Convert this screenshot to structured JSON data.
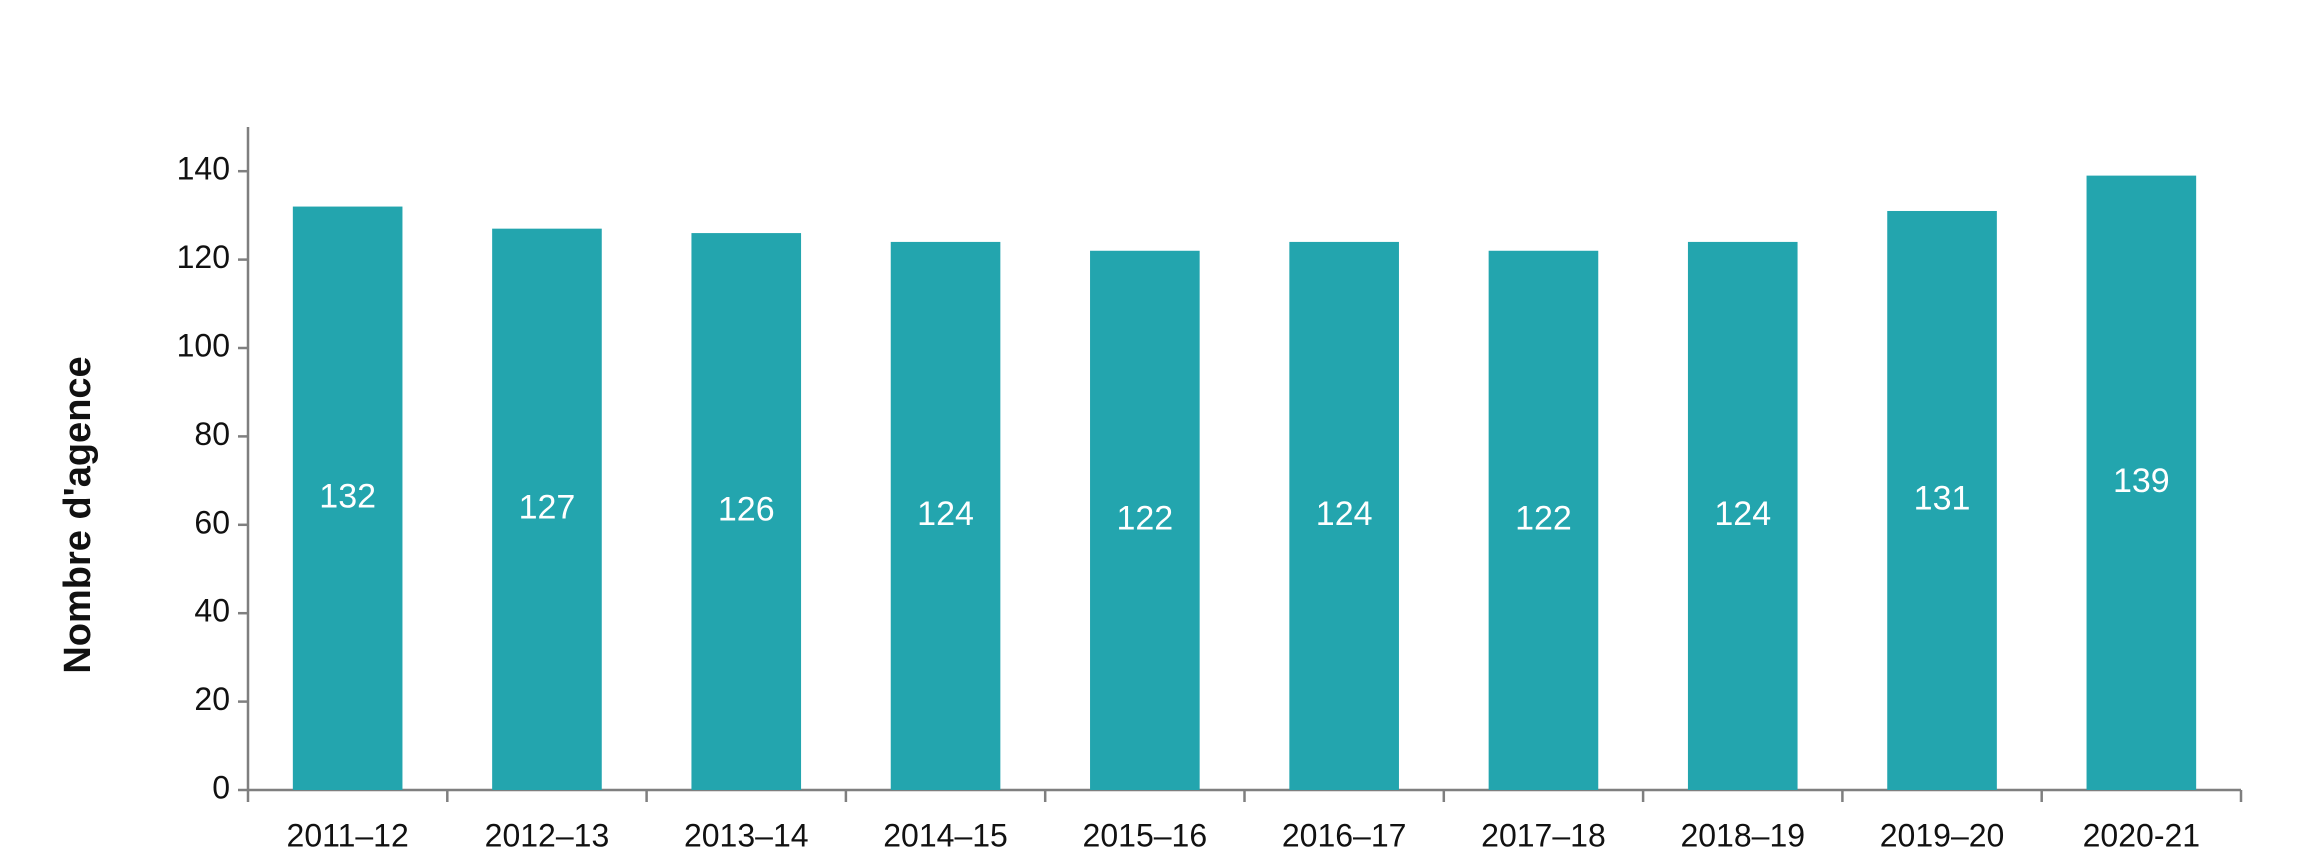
{
  "chart_data": {
    "type": "bar",
    "y_label": "Nombre d'agence",
    "categories": [
      "2011–12",
      "2012–13",
      "2013–14",
      "2014–15",
      "2015–16",
      "2016–17",
      "2017–18",
      "2018–19",
      "2019–20",
      "2020-21"
    ],
    "values": [
      132,
      127,
      126,
      124,
      122,
      124,
      122,
      124,
      131,
      139
    ],
    "color": "#23a5ae",
    "ylim": [
      0,
      150
    ],
    "yticks": [
      0,
      20,
      40,
      60,
      80,
      100,
      120,
      140
    ],
    "grid": false
  }
}
